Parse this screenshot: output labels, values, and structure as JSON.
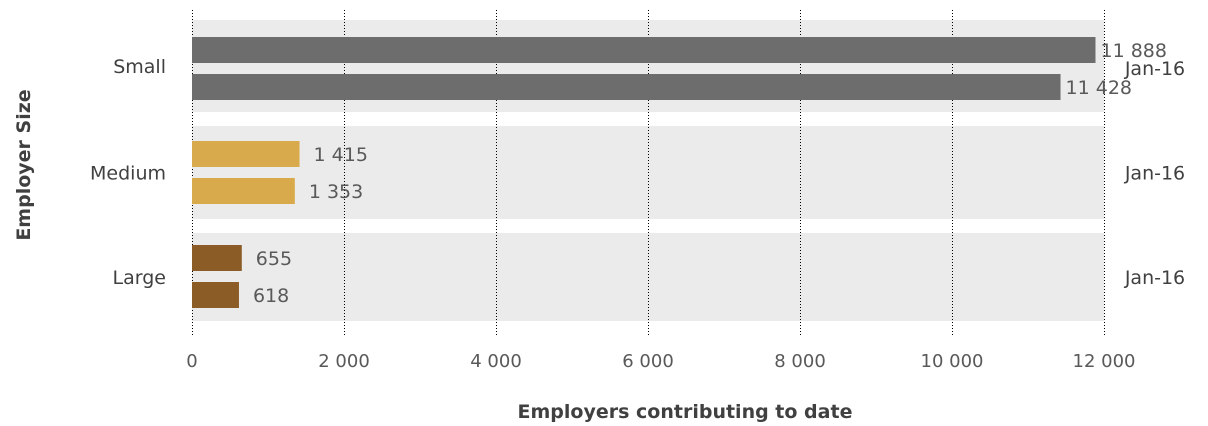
{
  "colors": {
    "band": "#ebebeb",
    "grid": "#000000",
    "Small": "#6d6d6d",
    "Medium": "#d9aa4c",
    "Large": "#8c5c27"
  },
  "chart_data": {
    "type": "bar",
    "orientation": "horizontal",
    "categories": [
      "Small",
      "Medium",
      "Large"
    ],
    "values": [
      [
        11888,
        11428
      ],
      [
        1415,
        1353
      ],
      [
        655,
        618
      ]
    ],
    "value_labels": [
      [
        "11 888",
        "11 428"
      ],
      [
        "1 415",
        "1 353"
      ],
      [
        "655",
        "618"
      ]
    ],
    "right_labels": [
      "Jan-16",
      "Jan-16",
      "Jan-16"
    ],
    "xlim": [
      0,
      12000
    ],
    "xticks": [
      0,
      2000,
      4000,
      6000,
      8000,
      10000,
      12000
    ],
    "xtick_labels": [
      "0",
      "2 000",
      "4 000",
      "6 000",
      "8 000",
      "10 000",
      "12 000"
    ],
    "xlabel": "Employers contributing to date",
    "ylabel": "Employer Size",
    "grid": "vertical dotted"
  }
}
